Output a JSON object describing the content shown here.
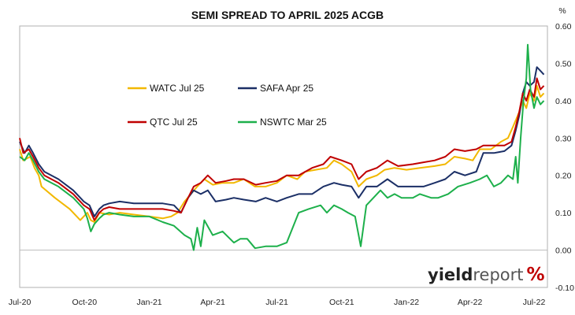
{
  "chart_data": {
    "type": "line",
    "title": "SEMI SPREAD TO APRIL 2025 ACGB",
    "unit_label": "%",
    "x_start": "2020-07-01",
    "x_end": "2022-07-20",
    "x_ticks": [
      {
        "label": "Jul-20",
        "date": "2020-07-01"
      },
      {
        "label": "Oct-20",
        "date": "2020-10-01"
      },
      {
        "label": "Jan-21",
        "date": "2021-01-01"
      },
      {
        "label": "Apr-21",
        "date": "2021-04-01"
      },
      {
        "label": "Jul-21",
        "date": "2021-07-01"
      },
      {
        "label": "Oct-21",
        "date": "2021-10-01"
      },
      {
        "label": "Jan-22",
        "date": "2022-01-01"
      },
      {
        "label": "Apr-22",
        "date": "2022-04-01"
      },
      {
        "label": "Jul-22",
        "date": "2022-07-01"
      }
    ],
    "ylim": [
      -0.1,
      0.6
    ],
    "y_ticks": [
      "0.60",
      "0.50",
      "0.40",
      "0.30",
      "0.20",
      "0.10",
      "0.00",
      "-0.10"
    ],
    "y_tick_values": [
      0.6,
      0.5,
      0.4,
      0.3,
      0.2,
      0.1,
      0.0,
      -0.1
    ],
    "legend_placement": "upper-left (inside plot)",
    "grid": false,
    "series": [
      {
        "name": "WATC Jul 25",
        "color": "#F2B800",
        "points": [
          [
            "2020-07-01",
            0.27
          ],
          [
            "2020-07-06",
            0.24
          ],
          [
            "2020-07-16",
            0.25
          ],
          [
            "2020-07-22",
            0.22
          ],
          [
            "2020-07-28",
            0.2
          ],
          [
            "2020-08-01",
            0.17
          ],
          [
            "2020-08-20",
            0.14
          ],
          [
            "2020-09-10",
            0.11
          ],
          [
            "2020-09-25",
            0.08
          ],
          [
            "2020-10-05",
            0.1
          ],
          [
            "2020-10-10",
            0.08
          ],
          [
            "2020-10-15",
            0.075
          ],
          [
            "2020-10-22",
            0.1
          ],
          [
            "2020-11-05",
            0.095
          ],
          [
            "2020-11-20",
            0.1
          ],
          [
            "2020-12-10",
            0.095
          ],
          [
            "2021-01-01",
            0.09
          ],
          [
            "2021-01-20",
            0.085
          ],
          [
            "2021-02-01",
            0.09
          ],
          [
            "2021-02-10",
            0.1
          ],
          [
            "2021-02-20",
            0.13
          ],
          [
            "2021-03-01",
            0.15
          ],
          [
            "2021-03-10",
            0.17
          ],
          [
            "2021-03-20",
            0.19
          ],
          [
            "2021-04-01",
            0.175
          ],
          [
            "2021-04-15",
            0.18
          ],
          [
            "2021-05-01",
            0.18
          ],
          [
            "2021-05-15",
            0.19
          ],
          [
            "2021-05-31",
            0.17
          ],
          [
            "2021-06-15",
            0.17
          ],
          [
            "2021-07-01",
            0.18
          ],
          [
            "2021-07-15",
            0.2
          ],
          [
            "2021-07-30",
            0.19
          ],
          [
            "2021-08-10",
            0.21
          ],
          [
            "2021-08-25",
            0.215
          ],
          [
            "2021-09-10",
            0.22
          ],
          [
            "2021-09-20",
            0.24
          ],
          [
            "2021-10-01",
            0.23
          ],
          [
            "2021-10-15",
            0.21
          ],
          [
            "2021-10-25",
            0.17
          ],
          [
            "2021-11-05",
            0.19
          ],
          [
            "2021-11-20",
            0.2
          ],
          [
            "2021-12-01",
            0.215
          ],
          [
            "2021-12-15",
            0.22
          ],
          [
            "2022-01-01",
            0.215
          ],
          [
            "2022-01-20",
            0.22
          ],
          [
            "2022-02-10",
            0.225
          ],
          [
            "2022-02-25",
            0.23
          ],
          [
            "2022-03-10",
            0.25
          ],
          [
            "2022-03-25",
            0.245
          ],
          [
            "2022-04-05",
            0.24
          ],
          [
            "2022-04-15",
            0.27
          ],
          [
            "2022-05-01",
            0.27
          ],
          [
            "2022-05-15",
            0.29
          ],
          [
            "2022-05-25",
            0.3
          ],
          [
            "2022-06-01",
            0.33
          ],
          [
            "2022-06-10",
            0.37
          ],
          [
            "2022-06-15",
            0.4
          ],
          [
            "2022-06-20",
            0.38
          ],
          [
            "2022-06-25",
            0.42
          ],
          [
            "2022-07-01",
            0.4
          ],
          [
            "2022-07-05",
            0.44
          ],
          [
            "2022-07-10",
            0.41
          ],
          [
            "2022-07-15",
            0.42
          ]
        ]
      },
      {
        "name": "SAFA Apr 25",
        "color": "#1B2F66",
        "points": [
          [
            "2020-07-01",
            0.29
          ],
          [
            "2020-07-08",
            0.26
          ],
          [
            "2020-07-14",
            0.28
          ],
          [
            "2020-07-20",
            0.26
          ],
          [
            "2020-07-28",
            0.23
          ],
          [
            "2020-08-05",
            0.21
          ],
          [
            "2020-08-25",
            0.19
          ],
          [
            "2020-09-15",
            0.16
          ],
          [
            "2020-09-30",
            0.13
          ],
          [
            "2020-10-08",
            0.12
          ],
          [
            "2020-10-15",
            0.09
          ],
          [
            "2020-10-22",
            0.11
          ],
          [
            "2020-10-28",
            0.12
          ],
          [
            "2020-11-05",
            0.125
          ],
          [
            "2020-11-20",
            0.13
          ],
          [
            "2020-12-10",
            0.125
          ],
          [
            "2021-01-01",
            0.125
          ],
          [
            "2021-01-20",
            0.125
          ],
          [
            "2021-02-05",
            0.12
          ],
          [
            "2021-02-15",
            0.1
          ],
          [
            "2021-02-25",
            0.14
          ],
          [
            "2021-03-05",
            0.16
          ],
          [
            "2021-03-15",
            0.15
          ],
          [
            "2021-03-25",
            0.16
          ],
          [
            "2021-04-05",
            0.13
          ],
          [
            "2021-04-20",
            0.135
          ],
          [
            "2021-05-01",
            0.14
          ],
          [
            "2021-05-15",
            0.135
          ],
          [
            "2021-06-01",
            0.13
          ],
          [
            "2021-06-15",
            0.14
          ],
          [
            "2021-07-01",
            0.13
          ],
          [
            "2021-07-15",
            0.14
          ],
          [
            "2021-08-01",
            0.15
          ],
          [
            "2021-08-20",
            0.15
          ],
          [
            "2021-09-05",
            0.17
          ],
          [
            "2021-09-20",
            0.18
          ],
          [
            "2021-10-01",
            0.175
          ],
          [
            "2021-10-15",
            0.17
          ],
          [
            "2021-10-25",
            0.14
          ],
          [
            "2021-11-05",
            0.17
          ],
          [
            "2021-11-20",
            0.17
          ],
          [
            "2021-12-05",
            0.19
          ],
          [
            "2021-12-20",
            0.17
          ],
          [
            "2022-01-10",
            0.17
          ],
          [
            "2022-01-25",
            0.17
          ],
          [
            "2022-02-10",
            0.18
          ],
          [
            "2022-02-25",
            0.19
          ],
          [
            "2022-03-10",
            0.21
          ],
          [
            "2022-03-25",
            0.2
          ],
          [
            "2022-04-10",
            0.21
          ],
          [
            "2022-04-20",
            0.26
          ],
          [
            "2022-05-05",
            0.26
          ],
          [
            "2022-05-20",
            0.265
          ],
          [
            "2022-05-30",
            0.28
          ],
          [
            "2022-06-05",
            0.32
          ],
          [
            "2022-06-10",
            0.36
          ],
          [
            "2022-06-15",
            0.42
          ],
          [
            "2022-06-20",
            0.45
          ],
          [
            "2022-06-25",
            0.44
          ],
          [
            "2022-07-01",
            0.45
          ],
          [
            "2022-07-05",
            0.49
          ],
          [
            "2022-07-10",
            0.48
          ],
          [
            "2022-07-15",
            0.47
          ]
        ]
      },
      {
        "name": "QTC Jul 25",
        "color": "#C00000",
        "points": [
          [
            "2020-07-01",
            0.3
          ],
          [
            "2020-07-06",
            0.26
          ],
          [
            "2020-07-14",
            0.27
          ],
          [
            "2020-07-20",
            0.25
          ],
          [
            "2020-07-28",
            0.22
          ],
          [
            "2020-08-05",
            0.2
          ],
          [
            "2020-08-25",
            0.18
          ],
          [
            "2020-09-15",
            0.15
          ],
          [
            "2020-09-30",
            0.12
          ],
          [
            "2020-10-08",
            0.11
          ],
          [
            "2020-10-15",
            0.08
          ],
          [
            "2020-10-22",
            0.1
          ],
          [
            "2020-10-28",
            0.11
          ],
          [
            "2020-11-05",
            0.115
          ],
          [
            "2020-11-20",
            0.11
          ],
          [
            "2020-12-10",
            0.11
          ],
          [
            "2021-01-01",
            0.11
          ],
          [
            "2021-01-20",
            0.11
          ],
          [
            "2021-02-05",
            0.105
          ],
          [
            "2021-02-15",
            0.1
          ],
          [
            "2021-02-25",
            0.14
          ],
          [
            "2021-03-05",
            0.17
          ],
          [
            "2021-03-15",
            0.18
          ],
          [
            "2021-03-25",
            0.2
          ],
          [
            "2021-04-05",
            0.18
          ],
          [
            "2021-04-20",
            0.185
          ],
          [
            "2021-05-01",
            0.19
          ],
          [
            "2021-05-15",
            0.19
          ],
          [
            "2021-06-01",
            0.175
          ],
          [
            "2021-06-15",
            0.18
          ],
          [
            "2021-07-01",
            0.185
          ],
          [
            "2021-07-15",
            0.2
          ],
          [
            "2021-08-01",
            0.2
          ],
          [
            "2021-08-20",
            0.22
          ],
          [
            "2021-09-05",
            0.23
          ],
          [
            "2021-09-15",
            0.25
          ],
          [
            "2021-10-01",
            0.24
          ],
          [
            "2021-10-15",
            0.23
          ],
          [
            "2021-10-25",
            0.19
          ],
          [
            "2021-11-05",
            0.21
          ],
          [
            "2021-11-20",
            0.22
          ],
          [
            "2021-12-05",
            0.24
          ],
          [
            "2021-12-20",
            0.225
          ],
          [
            "2022-01-10",
            0.23
          ],
          [
            "2022-01-25",
            0.235
          ],
          [
            "2022-02-10",
            0.24
          ],
          [
            "2022-02-25",
            0.25
          ],
          [
            "2022-03-10",
            0.27
          ],
          [
            "2022-03-25",
            0.265
          ],
          [
            "2022-04-10",
            0.27
          ],
          [
            "2022-04-20",
            0.28
          ],
          [
            "2022-05-05",
            0.28
          ],
          [
            "2022-05-20",
            0.28
          ],
          [
            "2022-05-30",
            0.29
          ],
          [
            "2022-06-05",
            0.33
          ],
          [
            "2022-06-10",
            0.37
          ],
          [
            "2022-06-15",
            0.42
          ],
          [
            "2022-06-20",
            0.4
          ],
          [
            "2022-06-25",
            0.43
          ],
          [
            "2022-07-01",
            0.41
          ],
          [
            "2022-07-05",
            0.46
          ],
          [
            "2022-07-10",
            0.43
          ],
          [
            "2022-07-15",
            0.44
          ]
        ]
      },
      {
        "name": "NSWTC Mar 25",
        "color": "#1DB04B",
        "points": [
          [
            "2020-07-01",
            0.25
          ],
          [
            "2020-07-08",
            0.24
          ],
          [
            "2020-07-14",
            0.26
          ],
          [
            "2020-07-20",
            0.24
          ],
          [
            "2020-07-28",
            0.21
          ],
          [
            "2020-08-05",
            0.19
          ],
          [
            "2020-08-25",
            0.17
          ],
          [
            "2020-09-15",
            0.14
          ],
          [
            "2020-09-30",
            0.11
          ],
          [
            "2020-10-05",
            0.085
          ],
          [
            "2020-10-10",
            0.05
          ],
          [
            "2020-10-15",
            0.07
          ],
          [
            "2020-10-22",
            0.085
          ],
          [
            "2020-10-28",
            0.095
          ],
          [
            "2020-11-05",
            0.1
          ],
          [
            "2020-11-20",
            0.095
          ],
          [
            "2020-12-10",
            0.09
          ],
          [
            "2021-01-01",
            0.09
          ],
          [
            "2021-01-20",
            0.075
          ],
          [
            "2021-02-05",
            0.065
          ],
          [
            "2021-02-20",
            0.04
          ],
          [
            "2021-03-01",
            0.03
          ],
          [
            "2021-03-05",
            0.0
          ],
          [
            "2021-03-10",
            0.06
          ],
          [
            "2021-03-15",
            0.01
          ],
          [
            "2021-03-20",
            0.08
          ],
          [
            "2021-04-01",
            0.04
          ],
          [
            "2021-04-15",
            0.05
          ],
          [
            "2021-05-01",
            0.02
          ],
          [
            "2021-05-10",
            0.03
          ],
          [
            "2021-05-20",
            0.03
          ],
          [
            "2021-05-31",
            0.005
          ],
          [
            "2021-06-15",
            0.01
          ],
          [
            "2021-07-01",
            0.01
          ],
          [
            "2021-07-15",
            0.02
          ],
          [
            "2021-08-01",
            0.1
          ],
          [
            "2021-08-15",
            0.11
          ],
          [
            "2021-09-01",
            0.12
          ],
          [
            "2021-09-10",
            0.1
          ],
          [
            "2021-09-20",
            0.12
          ],
          [
            "2021-10-01",
            0.11
          ],
          [
            "2021-10-10",
            0.1
          ],
          [
            "2021-10-20",
            0.09
          ],
          [
            "2021-10-28",
            0.01
          ],
          [
            "2021-11-05",
            0.12
          ],
          [
            "2021-11-15",
            0.14
          ],
          [
            "2021-11-25",
            0.16
          ],
          [
            "2021-12-05",
            0.14
          ],
          [
            "2021-12-15",
            0.15
          ],
          [
            "2021-12-25",
            0.14
          ],
          [
            "2022-01-10",
            0.14
          ],
          [
            "2022-01-20",
            0.15
          ],
          [
            "2022-02-05",
            0.14
          ],
          [
            "2022-02-15",
            0.14
          ],
          [
            "2022-03-01",
            0.15
          ],
          [
            "2022-03-15",
            0.17
          ],
          [
            "2022-04-01",
            0.18
          ],
          [
            "2022-04-15",
            0.19
          ],
          [
            "2022-04-25",
            0.2
          ],
          [
            "2022-05-05",
            0.17
          ],
          [
            "2022-05-15",
            0.18
          ],
          [
            "2022-05-25",
            0.2
          ],
          [
            "2022-06-01",
            0.19
          ],
          [
            "2022-06-05",
            0.25
          ],
          [
            "2022-06-08",
            0.18
          ],
          [
            "2022-06-12",
            0.3
          ],
          [
            "2022-06-16",
            0.4
          ],
          [
            "2022-06-20",
            0.46
          ],
          [
            "2022-06-22",
            0.55
          ],
          [
            "2022-06-26",
            0.43
          ],
          [
            "2022-07-01",
            0.38
          ],
          [
            "2022-07-05",
            0.41
          ],
          [
            "2022-07-10",
            0.39
          ],
          [
            "2022-07-15",
            0.4
          ]
        ]
      }
    ]
  },
  "watermark": {
    "part1": "yield",
    "part2": "report",
    "part3": "%",
    "color1": "#1a1a1a",
    "color2": "#555555",
    "color3": "#C00000"
  }
}
